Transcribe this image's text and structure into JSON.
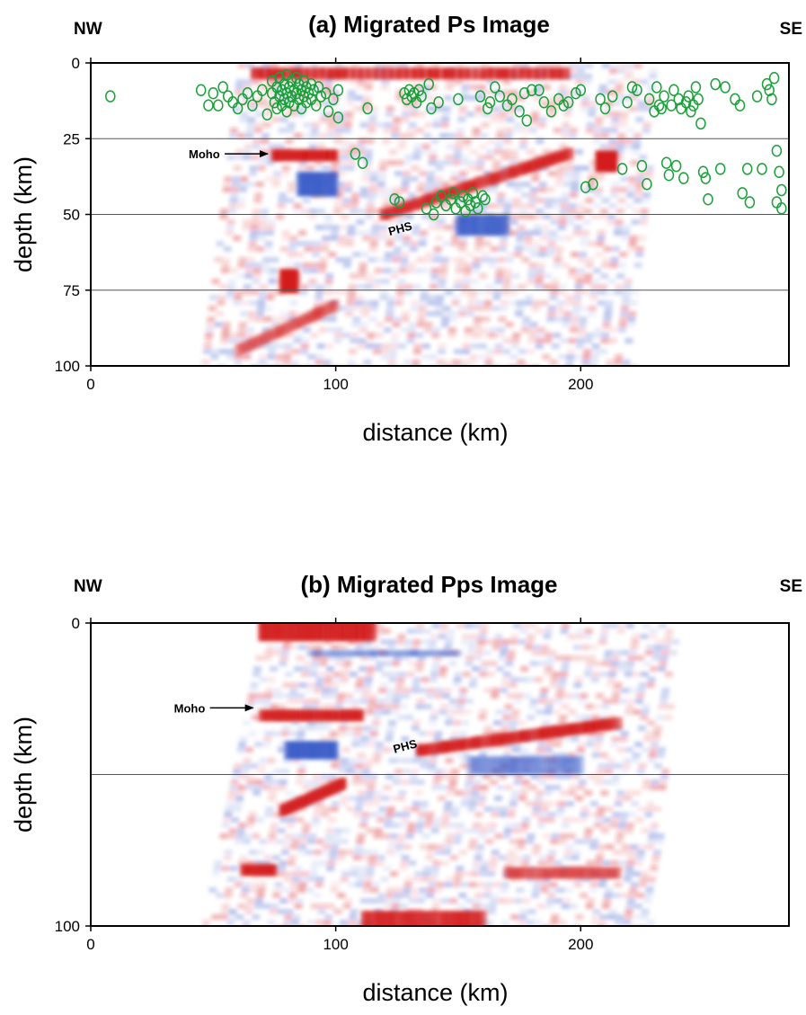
{
  "chart_data": [
    {
      "type": "heatmap",
      "title": "(a)  Migrated Ps Image",
      "left_label": "NW",
      "right_label": "SE",
      "xlabel": "distance (km)",
      "ylabel": "depth (km)",
      "xlim": [
        0,
        285
      ],
      "ylim": [
        100,
        0
      ],
      "xticks": [
        0,
        100,
        200
      ],
      "yticks": [
        0,
        25,
        50,
        75,
        100
      ],
      "grid_lines_depth": [
        25,
        50,
        75
      ],
      "colors": {
        "positive": "#d42020",
        "negative": "#3a5cc8",
        "events": "#1aa038"
      },
      "annotations": [
        {
          "text": "Moho",
          "x": 73,
          "y": 30,
          "arrow": true
        },
        {
          "text": "PHS",
          "x": 122,
          "y": 57,
          "rotation": -15
        }
      ],
      "features": [
        {
          "sign": 1,
          "x0": 68,
          "x1": 193,
          "y0": 0,
          "y1": 7,
          "amp": 1.0
        },
        {
          "sign": 1,
          "x0": 75,
          "x1": 100,
          "y0": 28,
          "y1": 33,
          "amp": 0.9
        },
        {
          "sign": 1,
          "x0": 120,
          "x1": 195,
          "y0": 50,
          "y1": 30,
          "amp": 0.9
        },
        {
          "sign": 1,
          "x0": 207,
          "x1": 214,
          "y0": 31,
          "y1": 34,
          "amp": 0.8
        },
        {
          "sign": -1,
          "x0": 85,
          "x1": 100,
          "y0": 38,
          "y1": 42,
          "amp": 0.5
        },
        {
          "sign": -1,
          "x0": 150,
          "x1": 170,
          "y0": 52,
          "y1": 55,
          "amp": 0.5
        },
        {
          "sign": 1,
          "x0": 78,
          "x1": 84,
          "y0": 70,
          "y1": 74,
          "amp": 0.6
        },
        {
          "sign": 1,
          "x0": 60,
          "x1": 100,
          "y0": 95,
          "y1": 80,
          "amp": 0.5
        }
      ],
      "events": [
        [
          8,
          11
        ],
        [
          45,
          9
        ],
        [
          48,
          14
        ],
        [
          50,
          10
        ],
        [
          52,
          14
        ],
        [
          54,
          8
        ],
        [
          56,
          11
        ],
        [
          58,
          13
        ],
        [
          60,
          15
        ],
        [
          62,
          12
        ],
        [
          64,
          10
        ],
        [
          66,
          14
        ],
        [
          68,
          11
        ],
        [
          70,
          9
        ],
        [
          72,
          17
        ],
        [
          74,
          6
        ],
        [
          74,
          10
        ],
        [
          75,
          13
        ],
        [
          76,
          8
        ],
        [
          76,
          15
        ],
        [
          77,
          5
        ],
        [
          77,
          11
        ],
        [
          78,
          9
        ],
        [
          78,
          14
        ],
        [
          79,
          7
        ],
        [
          79,
          12
        ],
        [
          80,
          4
        ],
        [
          80,
          10
        ],
        [
          80,
          16
        ],
        [
          81,
          8
        ],
        [
          81,
          13
        ],
        [
          82,
          6
        ],
        [
          82,
          11
        ],
        [
          83,
          9
        ],
        [
          83,
          14
        ],
        [
          84,
          5
        ],
        [
          84,
          10
        ],
        [
          85,
          7
        ],
        [
          85,
          12
        ],
        [
          86,
          9
        ],
        [
          86,
          15
        ],
        [
          87,
          6
        ],
        [
          87,
          11
        ],
        [
          88,
          8
        ],
        [
          88,
          13
        ],
        [
          89,
          10
        ],
        [
          90,
          7
        ],
        [
          90,
          12
        ],
        [
          91,
          9
        ],
        [
          92,
          14
        ],
        [
          93,
          8
        ],
        [
          94,
          11
        ],
        [
          96,
          10
        ],
        [
          97,
          16
        ],
        [
          99,
          12
        ],
        [
          101,
          18
        ],
        [
          101,
          9
        ],
        [
          108,
          30
        ],
        [
          111,
          33
        ],
        [
          113,
          15
        ],
        [
          124,
          45
        ],
        [
          126,
          46
        ],
        [
          128,
          10
        ],
        [
          129,
          12
        ],
        [
          130,
          9
        ],
        [
          131,
          11
        ],
        [
          132,
          10
        ],
        [
          133,
          13
        ],
        [
          134,
          9
        ],
        [
          135,
          11
        ],
        [
          137,
          48
        ],
        [
          138,
          7
        ],
        [
          139,
          15
        ],
        [
          140,
          50
        ],
        [
          141,
          46
        ],
        [
          142,
          13
        ],
        [
          143,
          44
        ],
        [
          145,
          47
        ],
        [
          147,
          45
        ],
        [
          148,
          43
        ],
        [
          149,
          48
        ],
        [
          150,
          12
        ],
        [
          151,
          46
        ],
        [
          152,
          44
        ],
        [
          153,
          49
        ],
        [
          154,
          45
        ],
        [
          155,
          47
        ],
        [
          156,
          43
        ],
        [
          157,
          46
        ],
        [
          158,
          48
        ],
        [
          159,
          11
        ],
        [
          160,
          44
        ],
        [
          161,
          45
        ],
        [
          162,
          15
        ],
        [
          163,
          13
        ],
        [
          165,
          8
        ],
        [
          167,
          11
        ],
        [
          170,
          14
        ],
        [
          172,
          12
        ],
        [
          175,
          16
        ],
        [
          177,
          10
        ],
        [
          178,
          19
        ],
        [
          180,
          9
        ],
        [
          183,
          9
        ],
        [
          185,
          13
        ],
        [
          188,
          16
        ],
        [
          191,
          12
        ],
        [
          193,
          14
        ],
        [
          195,
          13
        ],
        [
          198,
          10
        ],
        [
          200,
          9
        ],
        [
          202,
          41
        ],
        [
          205,
          40
        ],
        [
          208,
          12
        ],
        [
          210,
          15
        ],
        [
          213,
          11
        ],
        [
          217,
          35
        ],
        [
          219,
          13
        ],
        [
          221,
          8
        ],
        [
          223,
          9
        ],
        [
          225,
          34
        ],
        [
          227,
          40
        ],
        [
          228,
          12
        ],
        [
          230,
          16
        ],
        [
          231,
          8
        ],
        [
          232,
          14
        ],
        [
          233,
          15
        ],
        [
          234,
          11
        ],
        [
          235,
          33
        ],
        [
          236,
          37
        ],
        [
          237,
          14
        ],
        [
          238,
          9
        ],
        [
          239,
          34
        ],
        [
          240,
          12
        ],
        [
          241,
          15
        ],
        [
          242,
          38
        ],
        [
          243,
          13
        ],
        [
          244,
          11
        ],
        [
          245,
          16
        ],
        [
          246,
          14
        ],
        [
          247,
          8
        ],
        [
          248,
          12
        ],
        [
          249,
          20
        ],
        [
          250,
          36
        ],
        [
          251,
          38
        ],
        [
          252,
          45
        ],
        [
          255,
          7
        ],
        [
          257,
          35
        ],
        [
          259,
          8
        ],
        [
          263,
          12
        ],
        [
          265,
          14
        ],
        [
          266,
          43
        ],
        [
          268,
          35
        ],
        [
          269,
          46
        ],
        [
          272,
          11
        ],
        [
          274,
          35
        ],
        [
          276,
          7
        ],
        [
          277,
          9
        ],
        [
          278,
          12
        ],
        [
          279,
          5
        ],
        [
          280,
          29
        ],
        [
          280,
          46
        ],
        [
          281,
          36
        ],
        [
          282,
          42
        ],
        [
          282,
          48
        ]
      ]
    },
    {
      "type": "heatmap",
      "title": "(b)  Migrated Pps Image",
      "left_label": "NW",
      "right_label": "SE",
      "xlabel": "distance (km)",
      "ylabel": "depth (km)",
      "xlim": [
        0,
        285
      ],
      "ylim": [
        100,
        0
      ],
      "xticks": [
        0,
        100,
        200
      ],
      "yticks": [
        0,
        100
      ],
      "grid_lines_depth": [
        50
      ],
      "colors": {
        "positive": "#d42020",
        "negative": "#3a5cc8"
      },
      "annotations": [
        {
          "text": "Moho",
          "x": 67,
          "y": 28,
          "arrow": true
        },
        {
          "text": "PHS",
          "x": 124,
          "y": 43,
          "rotation": -15
        }
      ],
      "features": [
        {
          "sign": 1,
          "x0": 70,
          "x1": 115,
          "y0": 1,
          "y1": 4,
          "amp": 0.9
        },
        {
          "sign": 1,
          "x0": 112,
          "x1": 160,
          "y0": 97,
          "y1": 100,
          "amp": 0.8
        },
        {
          "sign": 1,
          "x0": 70,
          "x1": 110,
          "y0": 27,
          "y1": 34,
          "amp": 0.9
        },
        {
          "sign": 1,
          "x0": 135,
          "x1": 215,
          "y0": 42,
          "y1": 33,
          "amp": 1.0
        },
        {
          "sign": 1,
          "x0": 78,
          "x1": 103,
          "y0": 62,
          "y1": 53,
          "amp": 0.9
        },
        {
          "sign": -1,
          "x0": 80,
          "x1": 100,
          "y0": 41,
          "y1": 43,
          "amp": 0.6
        },
        {
          "sign": -1,
          "x0": 155,
          "x1": 200,
          "y0": 46,
          "y1": 48,
          "amp": 0.45
        },
        {
          "sign": -1,
          "x0": 90,
          "x1": 150,
          "y0": 12,
          "y1": 8,
          "amp": 0.4
        },
        {
          "sign": 1,
          "x0": 62,
          "x1": 75,
          "y0": 78,
          "y1": 85,
          "amp": 0.5
        },
        {
          "sign": 1,
          "x0": 170,
          "x1": 215,
          "y0": 85,
          "y1": 80,
          "amp": 0.5
        }
      ]
    }
  ]
}
